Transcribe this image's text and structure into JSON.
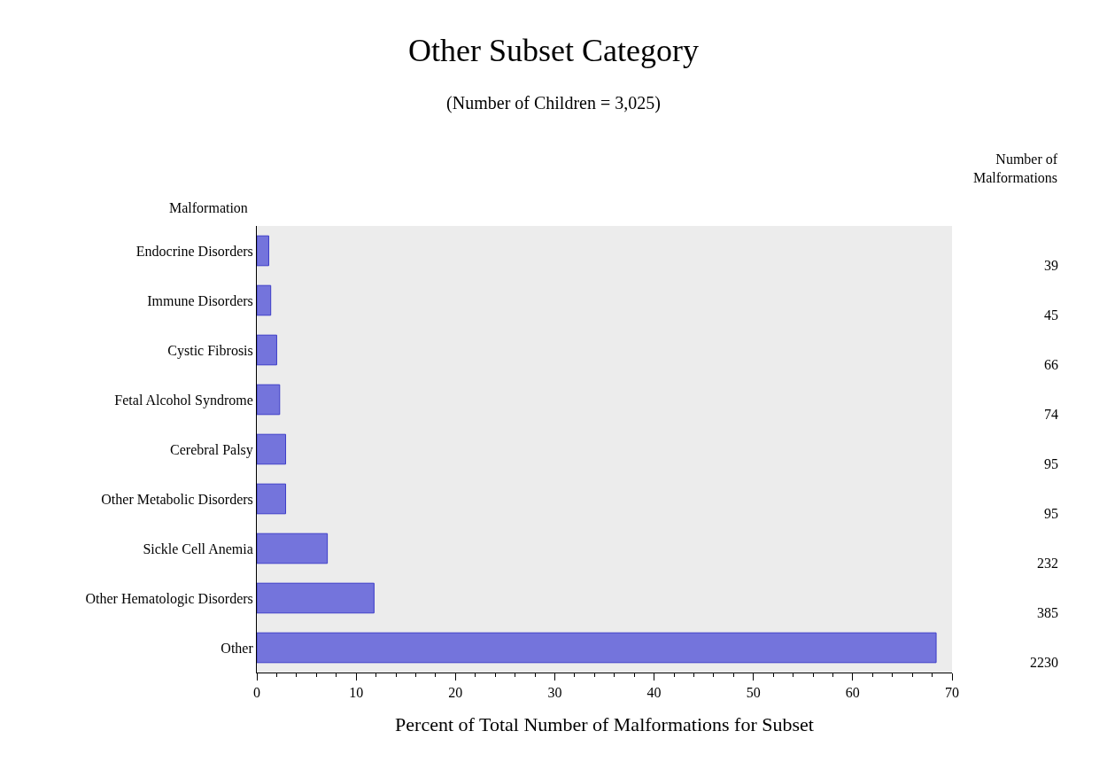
{
  "chart_data": {
    "type": "bar",
    "orientation": "horizontal",
    "title": "Other Subset Category",
    "subtitle": "(Number of Children = 3,025)",
    "xlabel": "Percent of Total Number of Malformations for Subset",
    "ylabel": "Malformation",
    "categories": [
      "Endocrine Disorders",
      "Immune Disorders",
      "Cystic Fibrosis",
      "Fetal Alcohol Syndrome",
      "Cerebral Palsy",
      "Other Metabolic Disorders",
      "Sickle Cell Anemia",
      "Other Hematologic Disorders",
      "Other"
    ],
    "values": [
      1.2,
      1.4,
      2.0,
      2.3,
      2.9,
      2.9,
      7.1,
      11.8,
      68.4
    ],
    "annotations": [
      "Number of Malformations",
      "39",
      "45",
      "66",
      "74",
      "95",
      "95",
      "232",
      "385",
      "2230"
    ],
    "color": "#7474dc",
    "xlim": [
      0,
      70
    ],
    "xticks": [
      0,
      10,
      20,
      30,
      40,
      50,
      60,
      70
    ],
    "grid": false
  }
}
